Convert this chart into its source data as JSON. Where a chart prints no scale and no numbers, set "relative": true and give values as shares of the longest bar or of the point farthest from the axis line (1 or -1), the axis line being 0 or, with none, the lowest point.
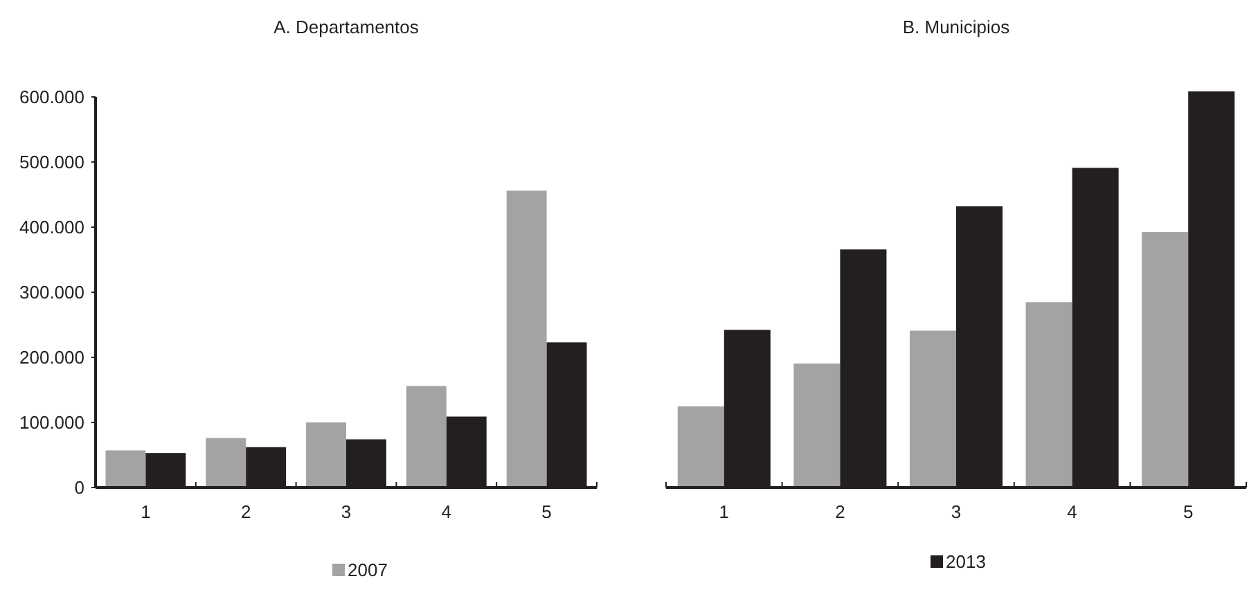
{
  "chart_data": [
    {
      "type": "bar",
      "title": "A. Departamentos",
      "categories": [
        "1",
        "2",
        "3",
        "4",
        "5"
      ],
      "series": [
        {
          "name": "2007",
          "color": "#a3a3a3",
          "values": [
            57000,
            76000,
            100000,
            156000,
            456000
          ]
        },
        {
          "color": "#231f20",
          "values": [
            53000,
            62000,
            74000,
            109000,
            223000
          ]
        }
      ],
      "ylim": [
        0,
        600000
      ],
      "yticks": [
        {
          "value": 0,
          "label": "0"
        },
        {
          "value": 100000,
          "label": "100.000"
        },
        {
          "value": 200000,
          "label": "200.000"
        },
        {
          "value": 300000,
          "label": "300.000"
        },
        {
          "value": 400000,
          "label": "400.000"
        },
        {
          "value": 500000,
          "label": "500.000"
        },
        {
          "value": 600000,
          "label": "600.000"
        }
      ],
      "legend": "bottom",
      "grid": false
    },
    {
      "type": "bar",
      "title": "B. Municipios",
      "categories": [
        "1",
        "2",
        "3",
        "4",
        "5"
      ],
      "series": [
        {
          "color": "#a3a3a3",
          "values": [
            0.205,
            0.313,
            0.396,
            0.468,
            0.645
          ]
        },
        {
          "name": "2013",
          "color": "#231f20",
          "values": [
            0.398,
            0.601,
            0.71,
            0.807,
            1
          ]
        }
      ],
      "relative": true,
      "legend": "bottom",
      "grid": false
    }
  ]
}
